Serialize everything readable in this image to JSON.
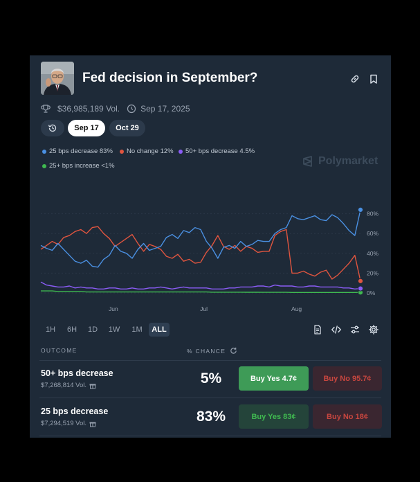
{
  "market": {
    "title": "Fed decision in September?",
    "volume": "$36,985,189 Vol.",
    "end_date": "Sep 17, 2025"
  },
  "tabs": [
    {
      "label": "Sep 17",
      "active": true
    },
    {
      "label": "Oct 29",
      "active": false
    }
  ],
  "legend": [
    {
      "label": "25 bps decrease 83%",
      "color": "#4a90e2"
    },
    {
      "label": "No change 12%",
      "color": "#e0553f"
    },
    {
      "label": "50+ bps decrease 4.5%",
      "color": "#8b5cf6"
    },
    {
      "label": "25+ bps increase <1%",
      "color": "#3fb950"
    }
  ],
  "watermark": "Polymarket",
  "time_ranges": [
    "1H",
    "6H",
    "1D",
    "1W",
    "1M",
    "ALL"
  ],
  "active_range": "ALL",
  "table": {
    "outcome_header": "OUTCOME",
    "chance_header": "% CHANCE"
  },
  "outcomes": [
    {
      "name": "50+ bps decrease",
      "volume": "$7,268,814 Vol.",
      "chance": "5%",
      "buy_yes": "Buy Yes 4.7¢",
      "buy_no": "Buy No 95.7¢"
    },
    {
      "name": "25 bps decrease",
      "volume": "$7,294,519 Vol.",
      "chance": "83%",
      "buy_yes": "Buy Yes 83¢",
      "buy_no": "Buy No 18¢"
    }
  ],
  "chart_data": {
    "type": "line",
    "x_ticks": [
      "Jun",
      "Jul",
      "Aug"
    ],
    "y_ticks": [
      "0%",
      "20%",
      "40%",
      "60%",
      "80%"
    ],
    "ylim": [
      0,
      100
    ],
    "series": [
      {
        "name": "25 bps decrease",
        "color": "#4a90e2",
        "values": [
          48,
          45,
          43,
          50,
          44,
          38,
          32,
          30,
          33,
          27,
          26,
          34,
          38,
          48,
          42,
          40,
          35,
          44,
          50,
          43,
          45,
          47,
          56,
          59,
          55,
          63,
          61,
          66,
          64,
          52,
          45,
          35,
          46,
          48,
          45,
          52,
          47,
          49,
          53,
          52,
          52,
          60,
          64,
          66,
          78,
          75,
          74,
          76,
          78,
          74,
          73,
          79,
          76,
          70,
          63,
          58,
          84
        ]
      },
      {
        "name": "No change",
        "color": "#e0553f",
        "values": [
          44,
          48,
          52,
          49,
          56,
          58,
          62,
          64,
          60,
          66,
          67,
          60,
          55,
          47,
          51,
          55,
          59,
          50,
          42,
          49,
          47,
          44,
          37,
          35,
          39,
          32,
          34,
          30,
          31,
          41,
          48,
          58,
          47,
          44,
          48,
          42,
          47,
          45,
          41,
          42,
          42,
          58,
          62,
          64,
          20,
          20,
          22,
          19,
          17,
          21,
          23,
          14,
          18,
          24,
          30,
          38,
          12
        ]
      },
      {
        "name": "50+ bps decrease",
        "color": "#8b5cf6",
        "values": [
          11,
          8,
          7,
          6,
          6,
          7,
          5,
          6,
          5,
          5,
          4,
          4,
          5,
          5,
          4,
          4,
          5,
          4,
          4,
          5,
          5,
          6,
          5,
          4,
          5,
          6,
          5,
          5,
          5,
          5,
          4,
          4,
          4,
          5,
          5,
          6,
          6,
          6,
          7,
          7,
          6,
          8,
          7,
          7,
          7,
          6,
          6,
          7,
          7,
          6,
          6,
          6,
          6,
          5,
          5,
          4,
          4.5
        ]
      },
      {
        "name": "25+ bps increase",
        "color": "#3fb950",
        "values": [
          2,
          2,
          2,
          1.5,
          1.5,
          1.5,
          1.5,
          1.5,
          1,
          1,
          1,
          1,
          1,
          1,
          1,
          1,
          1,
          1,
          1,
          1,
          1,
          1,
          1,
          1,
          1,
          1,
          1,
          1,
          1,
          1,
          0.8,
          0.8,
          0.8,
          0.8,
          0.8,
          0.8,
          0.7,
          0.7,
          0.7,
          0.6,
          0.6,
          0.6,
          0.6,
          0.6,
          0.5,
          0.5,
          0.5,
          0.5,
          0.5,
          0.5,
          0.5,
          0.5,
          0.5,
          0.5,
          0.5,
          0.5,
          0.5
        ]
      }
    ]
  }
}
